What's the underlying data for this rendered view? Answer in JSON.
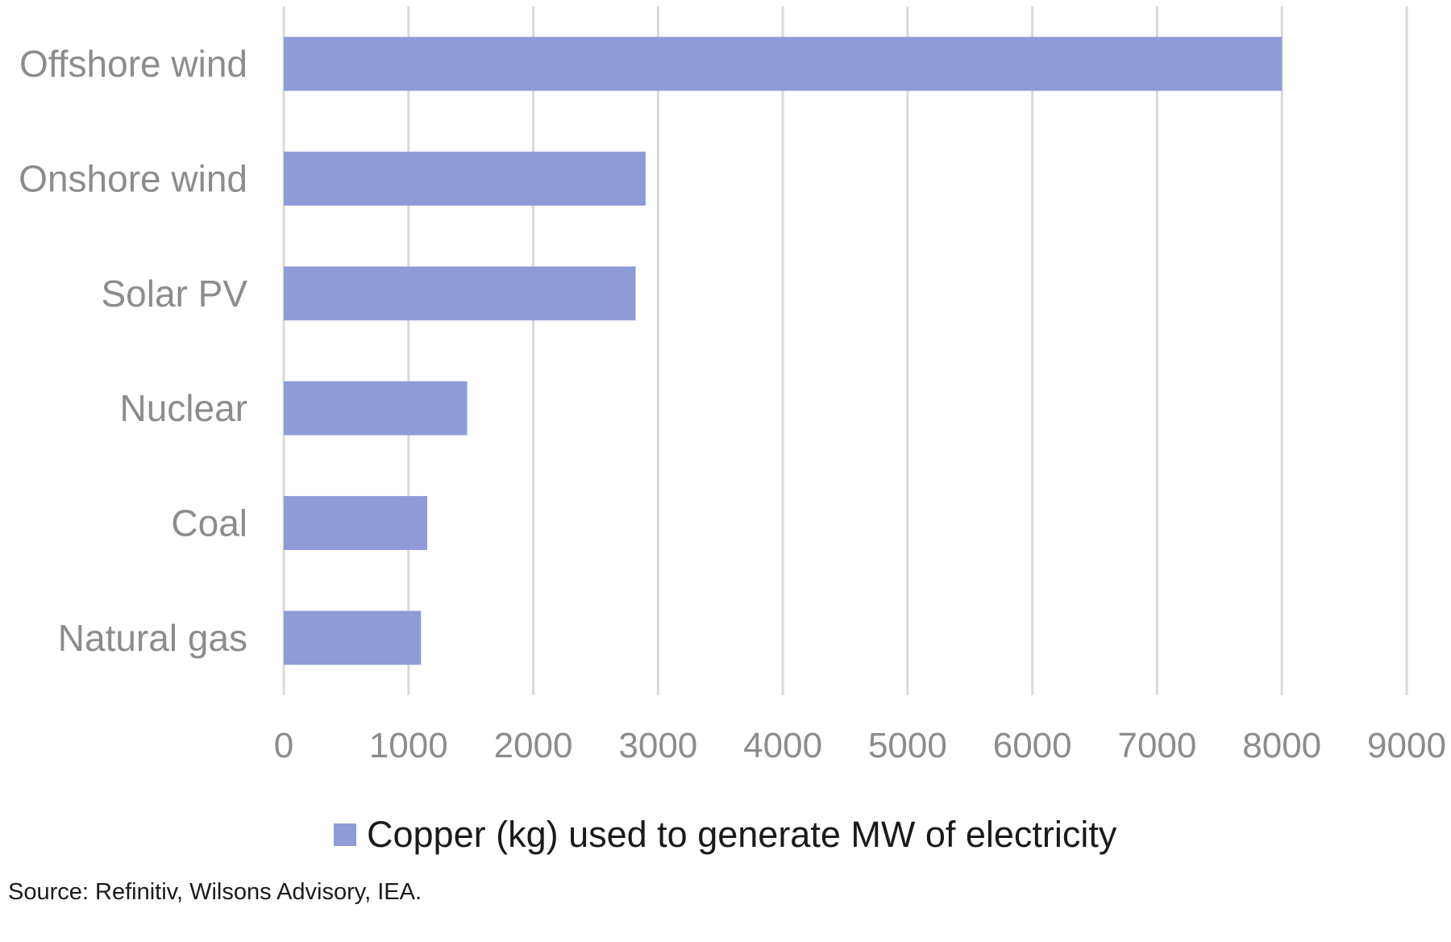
{
  "chart_data": {
    "type": "bar",
    "orientation": "horizontal",
    "categories": [
      "Offshore wind",
      "Onshore wind",
      "Solar PV",
      "Nuclear",
      "Coal",
      "Natural gas"
    ],
    "series": [
      {
        "name": "Copper (kg) used to generate MW of electricity",
        "values": [
          8000,
          2900,
          2820,
          1470,
          1150,
          1100
        ],
        "color": "#8e9bd6"
      }
    ],
    "xlim": [
      0,
      9000
    ],
    "x_ticks": [
      "0",
      "1000",
      "2000",
      "3000",
      "4000",
      "5000",
      "6000",
      "7000",
      "8000",
      "9000"
    ],
    "grid": true,
    "grid_color": "#d9d9d9",
    "legend_position": "bottom"
  },
  "source": "Source: Refinitiv, Wilsons Advisory, IEA."
}
